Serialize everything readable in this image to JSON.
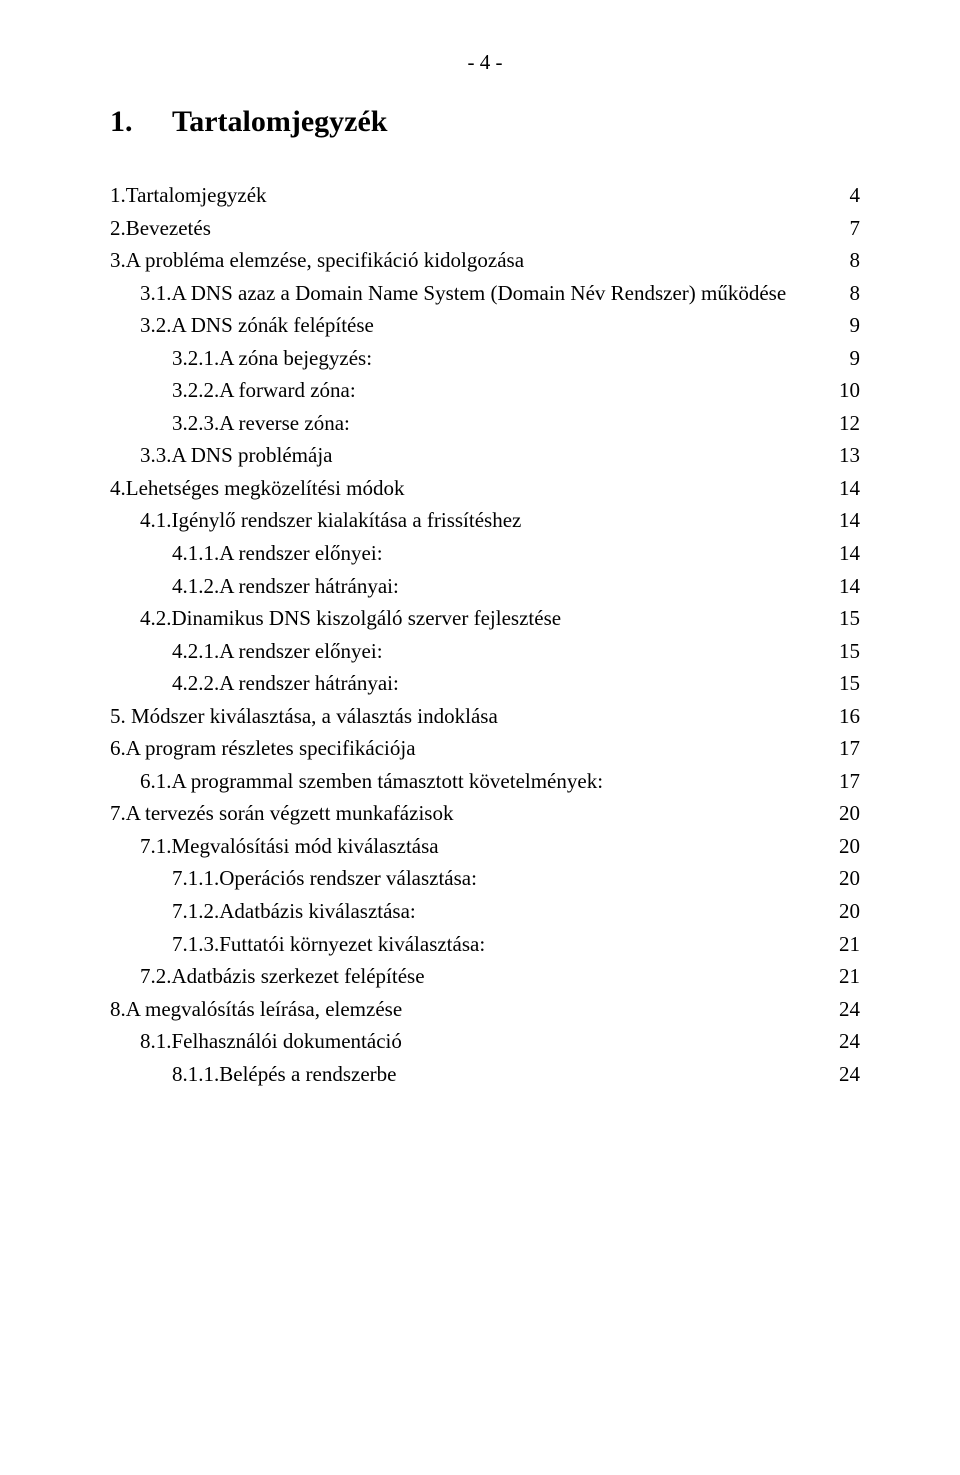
{
  "page_number": "- 4 -",
  "heading": {
    "number": "1.",
    "title": "Tartalomjegyzék"
  },
  "toc": [
    {
      "level": 0,
      "label": "1.Tartalomjegyzék",
      "page": "4"
    },
    {
      "level": 0,
      "label": "2.Bevezetés",
      "page": "7"
    },
    {
      "level": 0,
      "label": "3.A probléma elemzése, specifikáció kidolgozása",
      "page": "8"
    },
    {
      "level": 1,
      "label": "3.1.A DNS azaz a Domain Name System (Domain Név Rendszer) működése",
      "page": "8"
    },
    {
      "level": 1,
      "label": "3.2.A DNS zónák felépítése",
      "page": "9"
    },
    {
      "level": 2,
      "label": "3.2.1.A zóna bejegyzés:",
      "page": "9"
    },
    {
      "level": 2,
      "label": "3.2.2.A forward zóna:",
      "page": "10"
    },
    {
      "level": 2,
      "label": "3.2.3.A reverse zóna:",
      "page": "12"
    },
    {
      "level": 1,
      "label": "3.3.A DNS problémája",
      "page": "13"
    },
    {
      "level": 0,
      "label": "4.Lehetséges megközelítési módok",
      "page": "14"
    },
    {
      "level": 1,
      "label": "4.1.Igénylő rendszer kialakítása a frissítéshez",
      "page": "14"
    },
    {
      "level": 2,
      "label": "4.1.1.A rendszer előnyei:",
      "page": "14"
    },
    {
      "level": 2,
      "label": "4.1.2.A rendszer hátrányai:",
      "page": "14"
    },
    {
      "level": 1,
      "label": "4.2.Dinamikus DNS kiszolgáló szerver fejlesztése",
      "page": "15"
    },
    {
      "level": 2,
      "label": "4.2.1.A rendszer előnyei:",
      "page": "15"
    },
    {
      "level": 2,
      "label": "4.2.2.A rendszer hátrányai:",
      "page": "15"
    },
    {
      "level": 0,
      "label": "5. Módszer kiválasztása, a választás indoklása",
      "page": "16"
    },
    {
      "level": 0,
      "label": "6.A program részletes specifikációja",
      "page": "17"
    },
    {
      "level": 1,
      "label": "6.1.A programmal szemben támasztott követelmények:",
      "page": "17"
    },
    {
      "level": 0,
      "label": "7.A tervezés során végzett munkafázisok",
      "page": "20"
    },
    {
      "level": 1,
      "label": "7.1.Megvalósítási mód kiválasztása",
      "page": "20"
    },
    {
      "level": 2,
      "label": "7.1.1.Operációs rendszer választása:",
      "page": "20"
    },
    {
      "level": 2,
      "label": "7.1.2.Adatbázis kiválasztása:",
      "page": "20"
    },
    {
      "level": 2,
      "label": "7.1.3.Futtatói környezet kiválasztása:",
      "page": "21"
    },
    {
      "level": 1,
      "label": "7.2.Adatbázis szerkezet felépítése",
      "page": "21"
    },
    {
      "level": 0,
      "label": "8.A megvalósítás leírása, elemzése",
      "page": "24"
    },
    {
      "level": 1,
      "label": "8.1.Felhasználói dokumentáció",
      "page": "24"
    },
    {
      "level": 2,
      "label": "8.1.1.Belépés a rendszerbe",
      "page": "24"
    }
  ]
}
